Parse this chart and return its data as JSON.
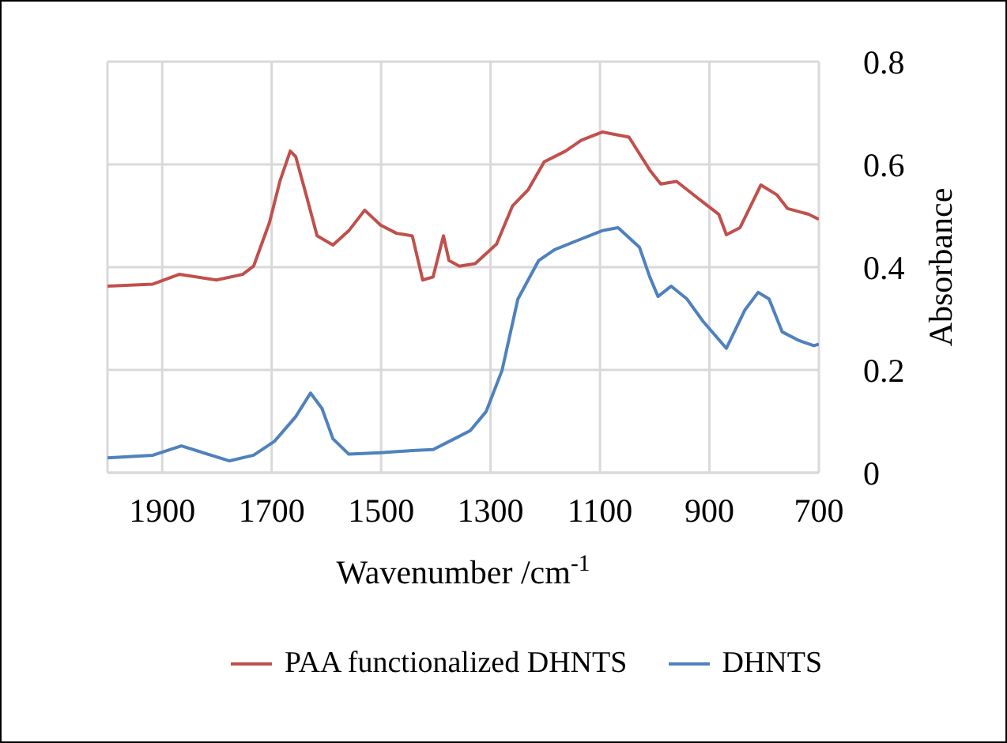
{
  "chart_data": {
    "type": "line",
    "xlabel": "Wavenumber /cm$^{-1}$",
    "ylabel": "Absorbance",
    "xlim": [
      2000,
      700
    ],
    "xticks": [
      1900,
      1700,
      1500,
      1300,
      1100,
      900,
      700
    ],
    "ylim": [
      0,
      0.8
    ],
    "yticks": [
      0,
      0.2,
      0.4,
      0.6,
      0.8
    ],
    "grid": true,
    "legend": "bottom",
    "marker": "none",
    "line_style": "solid",
    "series": [
      {
        "name": "PAA functionalized DHNTS",
        "color": "#c0504d",
        "x": [
          2000,
          1917,
          1869,
          1801,
          1753,
          1733,
          1704,
          1685,
          1666,
          1656,
          1637,
          1617,
          1588,
          1559,
          1530,
          1501,
          1472,
          1443,
          1424,
          1405,
          1386,
          1376,
          1357,
          1328,
          1289,
          1260,
          1231,
          1202,
          1163,
          1134,
          1096,
          1047,
          1009,
          989,
          960,
          922,
          883,
          869,
          844,
          806,
          777,
          757,
          719,
          700
        ],
        "values": [
          0.363,
          0.367,
          0.386,
          0.375,
          0.386,
          0.402,
          0.487,
          0.567,
          0.626,
          0.615,
          0.541,
          0.461,
          0.443,
          0.471,
          0.511,
          0.482,
          0.466,
          0.461,
          0.375,
          0.381,
          0.461,
          0.413,
          0.402,
          0.407,
          0.445,
          0.519,
          0.551,
          0.605,
          0.626,
          0.647,
          0.663,
          0.653,
          0.589,
          0.562,
          0.567,
          0.535,
          0.503,
          0.463,
          0.477,
          0.56,
          0.541,
          0.514,
          0.503,
          0.493
        ]
      },
      {
        "name": "DHNTS",
        "color": "#4f81bd",
        "x": [
          2000,
          1917,
          1865,
          1777,
          1733,
          1695,
          1656,
          1629,
          1608,
          1588,
          1559,
          1501,
          1443,
          1405,
          1366,
          1337,
          1308,
          1279,
          1250,
          1212,
          1183,
          1134,
          1096,
          1067,
          1028,
          1009,
          994,
          970,
          941,
          912,
          869,
          835,
          811,
          791,
          767,
          738,
          709,
          700
        ],
        "values": [
          0.029,
          0.034,
          0.052,
          0.023,
          0.034,
          0.061,
          0.109,
          0.155,
          0.125,
          0.066,
          0.036,
          0.039,
          0.043,
          0.045,
          0.066,
          0.082,
          0.119,
          0.199,
          0.338,
          0.413,
          0.434,
          0.455,
          0.471,
          0.477,
          0.439,
          0.381,
          0.343,
          0.363,
          0.338,
          0.295,
          0.242,
          0.317,
          0.351,
          0.338,
          0.274,
          0.258,
          0.247,
          0.25
        ]
      }
    ]
  }
}
